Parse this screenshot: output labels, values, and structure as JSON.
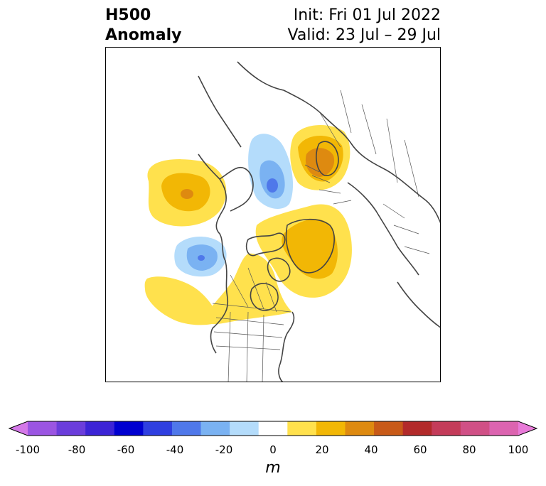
{
  "header": {
    "title_line1": "H500",
    "title_line2": "Anomaly",
    "init_text": "Init: Fri 01 Jul 2022",
    "valid_text": "Valid: 23 Jul – 29 Jul"
  },
  "map": {
    "projection": "polar stereographic (North America / Arctic)",
    "features": [
      "coastlines",
      "country borders",
      "US state and Canadian province boundaries"
    ],
    "anomaly_centers": [
      {
        "region": "Gulf of Alaska / NE Pacific",
        "sign": "positive",
        "max_level": 40
      },
      {
        "region": "Beaufort Sea / Siberian Arctic",
        "sign": "negative",
        "max_level": -40
      },
      {
        "region": "Scandinavia / NW Russia",
        "sign": "positive",
        "max_level": 40
      },
      {
        "region": "Greenland / Labrador",
        "sign": "positive",
        "max_level": 30
      },
      {
        "region": "NE Pacific off British Columbia",
        "sign": "negative",
        "max_level": -40
      },
      {
        "region": "Western Canada / Northern US",
        "sign": "positive",
        "max_level": 20
      },
      {
        "region": "Subtropical E Pacific",
        "sign": "positive",
        "max_level": 20
      }
    ]
  },
  "colorbar": {
    "unit": "m",
    "ticks": [
      "-100",
      "-80",
      "-60",
      "-40",
      "-20",
      "0",
      "20",
      "40",
      "60",
      "80",
      "100"
    ],
    "levels": [
      -100,
      -90,
      -80,
      -70,
      -60,
      -50,
      -40,
      -30,
      -20,
      -10,
      10,
      20,
      30,
      40,
      50,
      60,
      70,
      80,
      90,
      100
    ],
    "colors": [
      "#d478e8",
      "#9b55e2",
      "#6b3ddb",
      "#3c24d6",
      "#0000d0",
      "#2f3fe0",
      "#4f78ea",
      "#7ab2f2",
      "#b4dcfb",
      "#ffffff",
      "#ffe14d",
      "#f2b705",
      "#de8a10",
      "#c85a18",
      "#b22a2a",
      "#c43c5a",
      "#d05086",
      "#dc64b0",
      "#e87ad8"
    ],
    "extend": "both"
  }
}
